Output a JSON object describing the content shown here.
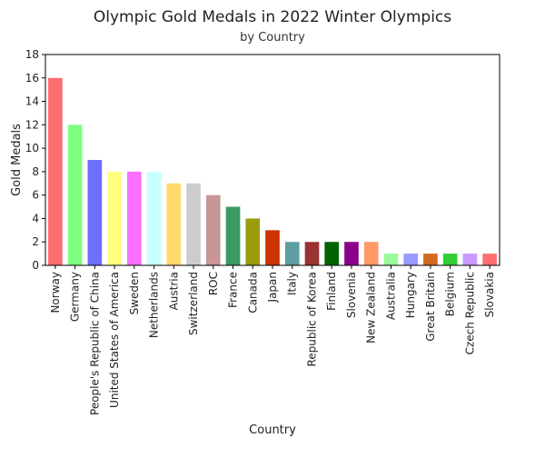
{
  "chart_data": {
    "type": "bar",
    "title": "Olympic Gold Medals in 2022 Winter Olympics",
    "subtitle": "by Country",
    "xlabel": "Country",
    "ylabel": "Gold Medals",
    "ylim": [
      0,
      18
    ],
    "yticks": [
      "0",
      "2",
      "4",
      "6",
      "8",
      "10",
      "12",
      "14",
      "16",
      "18"
    ],
    "grid": false,
    "legend": "none",
    "categories": [
      "Norway",
      "Germany",
      "People's Republic of China",
      "United States of America",
      "Sweden",
      "Netherlands",
      "Austria",
      "Switzerland",
      "ROC",
      "France",
      "Canada",
      "Japan",
      "Italy",
      "Republic of Korea",
      "Finland",
      "Slovenia",
      "New Zealand",
      "Australia",
      "Hungary",
      "Great Britain",
      "Belgium",
      "Czech Republic",
      "Slovakia"
    ],
    "values": [
      16,
      12,
      9,
      8,
      8,
      8,
      7,
      7,
      6,
      5,
      4,
      3,
      2,
      2,
      2,
      2,
      2,
      1,
      1,
      1,
      1,
      1,
      1
    ],
    "colors": [
      "#ff6e6e",
      "#7fff7f",
      "#6e6eff",
      "#ffff7f",
      "#ff6eff",
      "#c8ffff",
      "#ffd86e",
      "#cccccc",
      "#c89696",
      "#3a9a64",
      "#9b9b0e",
      "#cc3300",
      "#5f9ea0",
      "#993333",
      "#006400",
      "#8b008b",
      "#ff9966",
      "#98fb98",
      "#9999ff",
      "#d2691e",
      "#32cd32",
      "#c899ff",
      "#ff6e6e"
    ]
  }
}
